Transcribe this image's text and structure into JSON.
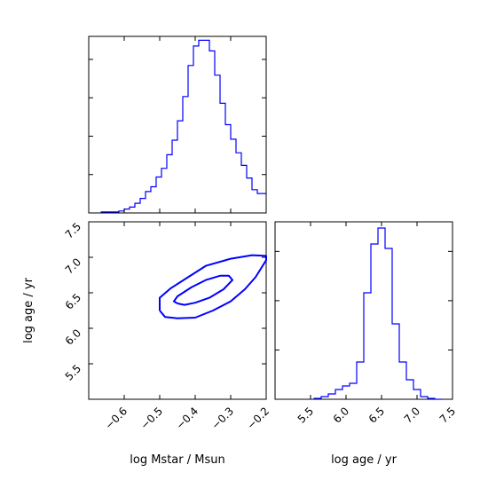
{
  "chart_data": {
    "type": "corner",
    "colors": {
      "line": "#0000ff",
      "axes": "#000000",
      "background": "#ffffff"
    },
    "grid": false,
    "params": [
      {
        "key": "mstar",
        "label": "log Mstar / Msun",
        "range": [
          -0.7,
          -0.2
        ],
        "ticks": [
          "−0.6",
          "−0.5",
          "−0.4",
          "−0.3",
          "−0.2"
        ],
        "tick_values": [
          -0.6,
          -0.5,
          -0.4,
          -0.3,
          -0.2
        ]
      },
      {
        "key": "age",
        "label": "log age / yr",
        "range": [
          5.0,
          7.5
        ],
        "ticks": [
          "5.5",
          "6.0",
          "6.5",
          "7.0",
          "7.5"
        ],
        "tick_values": [
          5.5,
          6.0,
          6.5,
          7.0,
          7.5
        ]
      }
    ],
    "hist_mstar": {
      "type": "step-histogram",
      "bin_edges": [
        -0.665,
        -0.63,
        -0.615,
        -0.6,
        -0.585,
        -0.57,
        -0.555,
        -0.54,
        -0.525,
        -0.51,
        -0.495,
        -0.48,
        -0.465,
        -0.45,
        -0.435,
        -0.42,
        -0.405,
        -0.39,
        -0.375,
        -0.36,
        -0.345,
        -0.33,
        -0.315,
        -0.3,
        -0.285,
        -0.27,
        -0.255,
        -0.24,
        -0.225,
        -0.21,
        -0.2
      ],
      "counts": [
        1,
        1,
        2,
        4,
        6,
        10,
        15,
        22,
        27,
        37,
        46,
        60,
        75,
        95,
        120,
        152,
        172,
        178,
        178,
        167,
        142,
        113,
        91,
        76,
        62,
        49,
        36,
        24,
        20,
        20
      ]
    },
    "hist_age": {
      "type": "step-histogram",
      "bin_edges": [
        5.55,
        5.65,
        5.75,
        5.85,
        5.95,
        6.05,
        6.15,
        6.25,
        6.35,
        6.45,
        6.55,
        6.65,
        6.75,
        6.85,
        6.95,
        7.05,
        7.15,
        7.25,
        7.35
      ],
      "counts": [
        1,
        3,
        6,
        11,
        15,
        18,
        42,
        120,
        175,
        193,
        170,
        85,
        42,
        22,
        11,
        3,
        1,
        0
      ]
    },
    "contours_2d": {
      "x_param": "mstar",
      "y_param": "age",
      "levels": [
        {
          "name": "inner",
          "points": [
            [
              -0.45,
              6.35
            ],
            [
              -0.43,
              6.33
            ],
            [
              -0.4,
              6.36
            ],
            [
              -0.36,
              6.43
            ],
            [
              -0.32,
              6.55
            ],
            [
              -0.295,
              6.68
            ],
            [
              -0.305,
              6.74
            ],
            [
              -0.33,
              6.74
            ],
            [
              -0.37,
              6.68
            ],
            [
              -0.41,
              6.58
            ],
            [
              -0.45,
              6.45
            ],
            [
              -0.46,
              6.38
            ],
            [
              -0.45,
              6.35
            ]
          ]
        },
        {
          "name": "outer",
          "points": [
            [
              -0.5,
              6.25
            ],
            [
              -0.485,
              6.16
            ],
            [
              -0.45,
              6.14
            ],
            [
              -0.4,
              6.15
            ],
            [
              -0.35,
              6.25
            ],
            [
              -0.3,
              6.38
            ],
            [
              -0.26,
              6.55
            ],
            [
              -0.23,
              6.72
            ],
            [
              -0.21,
              6.88
            ],
            [
              -0.2,
              6.96
            ],
            [
              -0.2,
              7.02
            ],
            [
              -0.24,
              7.03
            ],
            [
              -0.3,
              6.98
            ],
            [
              -0.37,
              6.88
            ],
            [
              -0.42,
              6.72
            ],
            [
              -0.47,
              6.56
            ],
            [
              -0.5,
              6.43
            ],
            [
              -0.5,
              6.25
            ]
          ]
        }
      ]
    }
  }
}
